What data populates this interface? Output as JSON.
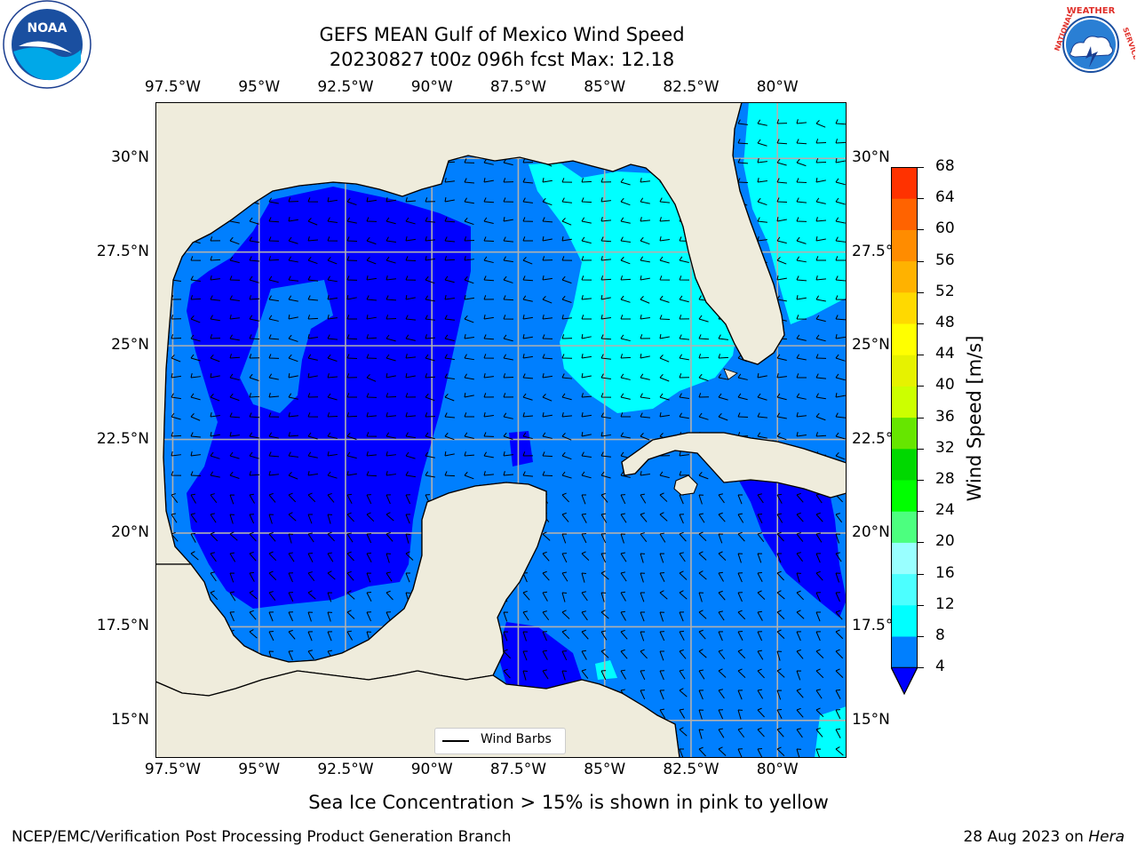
{
  "title": {
    "line1": "GEFS MEAN Gulf of Mexico Wind Speed",
    "line2": "20230827 t00z 096h fcst   Max: 12.18"
  },
  "logos": {
    "left": {
      "icon": "noaa-logo-icon",
      "text": "NOAA"
    },
    "right": {
      "icon": "nws-logo-icon",
      "text": "NATIONAL WEATHER SERVICE"
    }
  },
  "map": {
    "projection": "lat-lon",
    "lon_range": [
      -98.0,
      -78.0
    ],
    "lat_range": [
      14.0,
      31.5
    ],
    "grid": true,
    "lon_ticks": [
      "97.5°W",
      "95°W",
      "92.5°W",
      "90°W",
      "87.5°W",
      "85°W",
      "82.5°W",
      "80°W"
    ],
    "lat_ticks": [
      "30°N",
      "27.5°N",
      "25°N",
      "22.5°N",
      "20°N",
      "17.5°N",
      "15°N"
    ],
    "max_wind": 12.18,
    "colors": {
      "land": "#efecdc",
      "lt4": "#0000ff",
      "b4_8": "#007ffe",
      "b8_12": "#00ffff"
    }
  },
  "legend": {
    "label": "Wind Barbs",
    "placement": "lower-center"
  },
  "colorbar": {
    "label": "Wind Speed [m/s]",
    "ticks": [
      "68",
      "64",
      "60",
      "56",
      "52",
      "48",
      "44",
      "40",
      "36",
      "32",
      "28",
      "24",
      "20",
      "16",
      "12",
      "8",
      "4"
    ],
    "levels": [
      4,
      8,
      12,
      16,
      20,
      24,
      28,
      32,
      36,
      40,
      44,
      48,
      52,
      56,
      60,
      64,
      68
    ],
    "colors": [
      "#007ffe",
      "#00ffff",
      "#4cffff",
      "#99ffff",
      "#4cff7f",
      "#00ff00",
      "#00d800",
      "#66e600",
      "#ccff00",
      "#e6f200",
      "#ffff00",
      "#ffd900",
      "#ffb200",
      "#ff8c00",
      "#ff6300",
      "#ff3200",
      "#ff0000"
    ],
    "under_color": "#0000ff"
  },
  "note": "Sea Ice Concentration > 15% is shown in pink to yellow",
  "footer": {
    "left": "NCEP/EMC/Verification Post Processing Product Generation Branch",
    "date": "28 Aug 2023 on",
    "host": "Hera"
  }
}
